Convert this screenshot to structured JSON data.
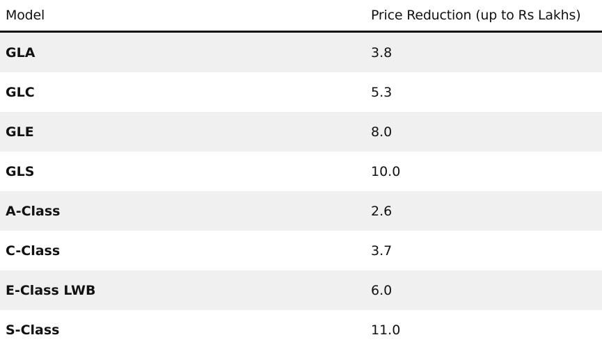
{
  "table": {
    "headers": {
      "model": "Model",
      "price_reduction": "Price Reduction (up to Rs Lakhs)"
    },
    "rows": [
      {
        "model": "GLA",
        "price_reduction": "3.8"
      },
      {
        "model": "GLC",
        "price_reduction": "5.3"
      },
      {
        "model": "GLE",
        "price_reduction": "8.0"
      },
      {
        "model": "GLS",
        "price_reduction": "10.0"
      },
      {
        "model": "A-Class",
        "price_reduction": "2.6"
      },
      {
        "model": "C-Class",
        "price_reduction": "3.7"
      },
      {
        "model": "E-Class LWB",
        "price_reduction": "6.0"
      },
      {
        "model": "S-Class",
        "price_reduction": "11.0"
      }
    ]
  },
  "colors": {
    "stripe": "#f0f0f0",
    "background": "#ffffff",
    "text": "#111111"
  }
}
